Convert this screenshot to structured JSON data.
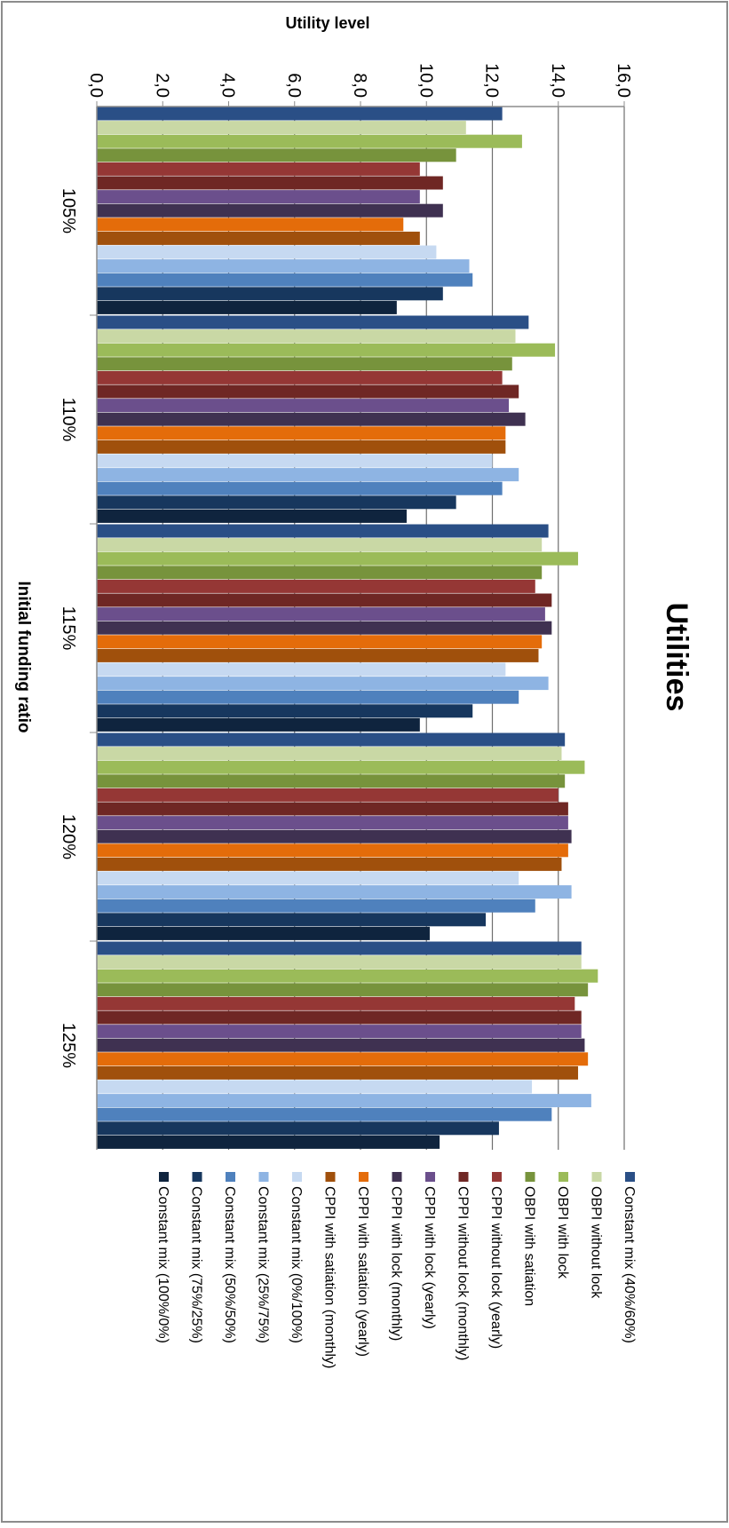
{
  "chart_data": {
    "type": "bar",
    "title": "Utilities",
    "xlabel": "Initial funding ratio",
    "ylabel": "Utility level",
    "ylim": [
      0,
      16
    ],
    "y_ticks": [
      "0,0",
      "2,0",
      "4,0",
      "6,0",
      "8,0",
      "10,0",
      "12,0",
      "14,0",
      "16,0"
    ],
    "categories": [
      "105%",
      "110%",
      "115%",
      "120%",
      "125%"
    ],
    "orientation": "rotated-90-clockwise",
    "grid": "major horizontal",
    "legend_position": "right",
    "series": [
      {
        "name": "Constant mix (40%/60%)",
        "color": "#2a4f86",
        "values": [
          12.3,
          13.1,
          13.7,
          14.2,
          14.7
        ]
      },
      {
        "name": "OBPI without lock",
        "color": "#c9d8a5",
        "values": [
          11.2,
          12.7,
          13.5,
          14.1,
          14.7
        ]
      },
      {
        "name": "OBPI with lock",
        "color": "#9bbb59",
        "values": [
          12.9,
          13.9,
          14.6,
          14.8,
          15.2
        ]
      },
      {
        "name": "OBPI with satiation",
        "color": "#77933c",
        "values": [
          10.9,
          12.6,
          13.5,
          14.2,
          14.9
        ]
      },
      {
        "name": "CPPI without lock (yearly)",
        "color": "#953735",
        "values": [
          9.8,
          12.3,
          13.3,
          14.0,
          14.5
        ]
      },
      {
        "name": "CPPI without lock (monthly)",
        "color": "#6f2724",
        "values": [
          10.5,
          12.8,
          13.8,
          14.3,
          14.7
        ]
      },
      {
        "name": "CPPI with lock (yearly)",
        "color": "#6b4f8c",
        "values": [
          9.8,
          12.5,
          13.6,
          14.3,
          14.7
        ]
      },
      {
        "name": "CPPI with lock (monthly)",
        "color": "#3f3151",
        "values": [
          10.5,
          13.0,
          13.8,
          14.4,
          14.8
        ]
      },
      {
        "name": "CPPI with satiation (yearly)",
        "color": "#e46c0a",
        "values": [
          9.3,
          12.4,
          13.5,
          14.3,
          14.9
        ]
      },
      {
        "name": "CPPI with satiation (monthly)",
        "color": "#a0500c",
        "values": [
          9.8,
          12.4,
          13.4,
          14.1,
          14.6
        ]
      },
      {
        "name": "Constant mix (0%/100%)",
        "color": "#c6d9f1",
        "values": [
          10.3,
          12.0,
          12.4,
          12.8,
          13.2
        ]
      },
      {
        "name": "Constant mix (25%/75%)",
        "color": "#8eb4e3",
        "values": [
          11.3,
          12.8,
          13.7,
          14.4,
          15.0
        ]
      },
      {
        "name": "Constant mix (50%/50%)",
        "color": "#4f81bd",
        "values": [
          11.4,
          12.3,
          12.8,
          13.3,
          13.8
        ]
      },
      {
        "name": "Constant mix (75%/25%)",
        "color": "#17375e",
        "values": [
          10.5,
          10.9,
          11.4,
          11.8,
          12.2
        ]
      },
      {
        "name": "Constant mix (100%/0%)",
        "color": "#0f243e",
        "values": [
          9.1,
          9.4,
          9.8,
          10.1,
          10.4
        ]
      }
    ]
  }
}
